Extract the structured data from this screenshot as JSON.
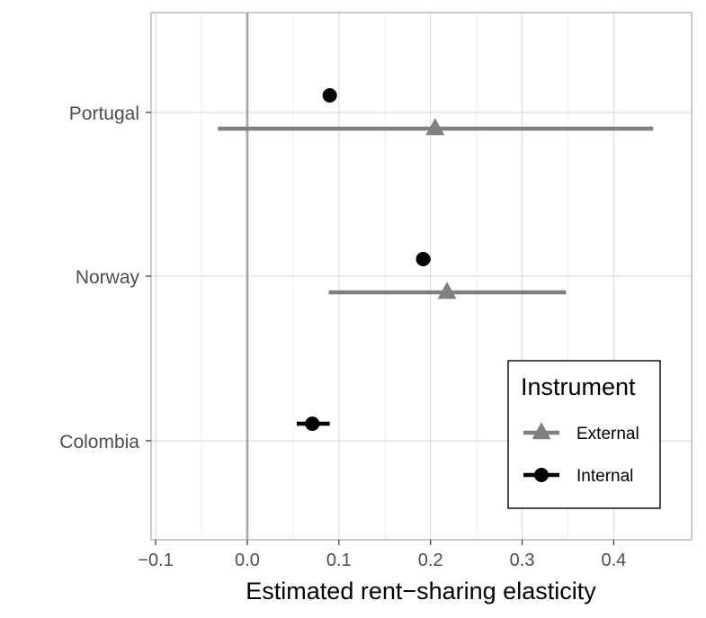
{
  "chart_data": {
    "type": "scatter",
    "xlabel": "Estimated rent−sharing elasticity",
    "ylabel": "",
    "title": "",
    "xlim": [
      -0.105,
      0.485
    ],
    "x_ticks": [
      -0.1,
      0.0,
      0.1,
      0.2,
      0.3,
      0.4
    ],
    "x_tick_labels": [
      "−0.1",
      "0.0",
      "0.1",
      "0.2",
      "0.3",
      "0.4"
    ],
    "categories": [
      "Portugal",
      "Norway",
      "Colombia"
    ],
    "reference_line_x": 0,
    "grid": true,
    "legend_position": "bottom-right",
    "legend_title": "Instrument",
    "series": [
      {
        "name": "External",
        "shape": "triangle",
        "color": "#808080",
        "points": [
          {
            "category": "Portugal",
            "estimate": 0.205,
            "ci_low": -0.032,
            "ci_high": 0.443
          },
          {
            "category": "Norway",
            "estimate": 0.218,
            "ci_low": 0.089,
            "ci_high": 0.348
          }
        ]
      },
      {
        "name": "Internal",
        "shape": "circle",
        "color": "#000000",
        "points": [
          {
            "category": "Portugal",
            "estimate": 0.09,
            "ci_low": 0.088,
            "ci_high": 0.092
          },
          {
            "category": "Norway",
            "estimate": 0.192,
            "ci_low": 0.185,
            "ci_high": 0.2
          },
          {
            "category": "Colombia",
            "estimate": 0.071,
            "ci_low": 0.054,
            "ci_high": 0.09
          }
        ]
      }
    ]
  }
}
